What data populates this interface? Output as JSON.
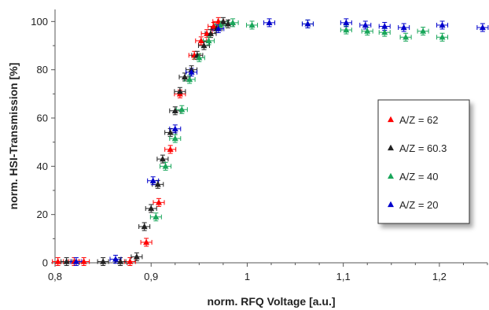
{
  "chart_data": {
    "type": "scatter",
    "xlabel": "norm. RFQ Voltage [a.u.]",
    "ylabel": "norm. HSI-Transmission [%]",
    "xlim": [
      0.8,
      1.25
    ],
    "ylim": [
      0,
      105
    ],
    "x_ticks": [
      "0,8",
      "0,9",
      "1",
      "1,1",
      "1,2"
    ],
    "x_tick_values": [
      0.8,
      0.9,
      1.0,
      1.1,
      1.2
    ],
    "y_ticks": [
      "0",
      "20",
      "40",
      "60",
      "80",
      "100"
    ],
    "y_tick_values": [
      0,
      20,
      40,
      60,
      80,
      100
    ],
    "grid": false,
    "legend_position": "right",
    "error_bars": true,
    "series": [
      {
        "name": "A/Z = 62",
        "color": "#ff0000",
        "points": [
          [
            0.803,
            0.5
          ],
          [
            0.82,
            0.5
          ],
          [
            0.83,
            0.5
          ],
          [
            0.878,
            0.5
          ],
          [
            0.895,
            8.5
          ],
          [
            0.908,
            25
          ],
          [
            0.92,
            47
          ],
          [
            0.93,
            70
          ],
          [
            0.945,
            86
          ],
          [
            0.952,
            92
          ],
          [
            0.958,
            95
          ],
          [
            0.965,
            98
          ],
          [
            0.97,
            100
          ]
        ]
      },
      {
        "name": "A/Z = 60.3",
        "color": "#222222",
        "points": [
          [
            0.812,
            0.5
          ],
          [
            0.85,
            0.5
          ],
          [
            0.868,
            0.5
          ],
          [
            0.885,
            2.5
          ],
          [
            0.893,
            15
          ],
          [
            0.9,
            22.5
          ],
          [
            0.907,
            32.5
          ],
          [
            0.912,
            43
          ],
          [
            0.92,
            54
          ],
          [
            0.925,
            63
          ],
          [
            0.93,
            71
          ],
          [
            0.935,
            77
          ],
          [
            0.942,
            80
          ],
          [
            0.948,
            86
          ],
          [
            0.955,
            90
          ],
          [
            0.962,
            95
          ],
          [
            0.968,
            97
          ],
          [
            0.975,
            100
          ],
          [
            0.98,
            99
          ]
        ]
      },
      {
        "name": "A/Z = 40",
        "color": "#19a65a",
        "points": [
          [
            0.905,
            19
          ],
          [
            0.915,
            40
          ],
          [
            0.925,
            51.5
          ],
          [
            0.932,
            63.5
          ],
          [
            0.94,
            76
          ],
          [
            0.95,
            85
          ],
          [
            0.96,
            92
          ],
          [
            0.972,
            98.5
          ],
          [
            0.985,
            99.5
          ],
          [
            1.005,
            98.5
          ],
          [
            1.063,
            99
          ],
          [
            1.103,
            96.5
          ],
          [
            1.125,
            96
          ],
          [
            1.143,
            95.5
          ],
          [
            1.165,
            93.5
          ],
          [
            1.183,
            96
          ],
          [
            1.203,
            93.5
          ]
        ]
      },
      {
        "name": "A/Z = 20",
        "color": "#0000cc",
        "points": [
          [
            0.822,
            0.5
          ],
          [
            0.863,
            1.5
          ],
          [
            0.902,
            34
          ],
          [
            0.925,
            55.5
          ],
          [
            0.942,
            79
          ],
          [
            0.97,
            97
          ],
          [
            1.023,
            99.5
          ],
          [
            1.063,
            99
          ],
          [
            1.103,
            99.5
          ],
          [
            1.123,
            98.5
          ],
          [
            1.143,
            98
          ],
          [
            1.163,
            97.5
          ],
          [
            1.203,
            98.5
          ],
          [
            1.245,
            97.5
          ]
        ]
      }
    ]
  }
}
